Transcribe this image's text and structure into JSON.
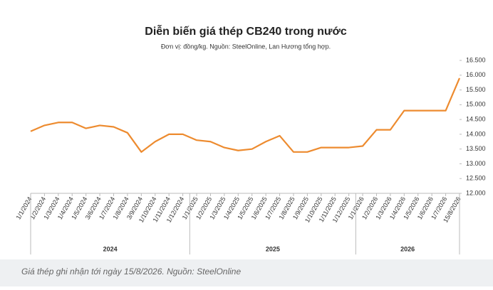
{
  "chart_data": {
    "type": "line",
    "title": "Diễn biến giá thép CB240 trong nước",
    "subtitle": "Đơn vị: đồng/kg. Nguồn: SteelOnline, Lan Hương tổng hợp.",
    "categories": [
      "1/1/2024",
      "1/2/2024",
      "1/3/2024",
      "1/4/2024",
      "1/5/2024",
      "3/6/2024",
      "1/7/2024",
      "1/8/2024",
      "3/9/2024",
      "1/10/2024",
      "1/11/2024",
      "1/12/2024",
      "1/1/2025",
      "1/2/2025",
      "1/3/2025",
      "1/4/2025",
      "1/5/2025",
      "1/6/2025",
      "1/7/2025",
      "1/8/2025",
      "1/9/2025",
      "1/10/2025",
      "1/11/2025",
      "1/12/2025",
      "1/1/2026",
      "1/2/2026",
      "1/3/2026",
      "1/4/2026",
      "1/5/2026",
      "1/6/2026",
      "1/7/2026",
      "15/8/2026"
    ],
    "values": [
      14.1,
      14.3,
      14.4,
      14.4,
      14.2,
      14.3,
      14.25,
      14.05,
      13.4,
      13.75,
      14.0,
      14.0,
      13.8,
      13.75,
      13.55,
      13.45,
      13.5,
      13.75,
      13.95,
      13.4,
      13.4,
      13.55,
      13.55,
      13.55,
      13.6,
      14.15,
      14.15,
      14.8,
      14.8,
      14.8,
      14.8,
      15.9
    ],
    "color": "#ed8b2f",
    "groups": [
      "2024",
      "2025",
      "2026"
    ],
    "ylim": [
      12,
      16.5
    ],
    "yticks": [
      {
        "value": 12,
        "label": "12.000"
      },
      {
        "value": 12.5,
        "label": "12.500"
      },
      {
        "value": 13,
        "label": "13.000"
      },
      {
        "value": 13.5,
        "label": "13.500"
      },
      {
        "value": 14,
        "label": "14.000"
      },
      {
        "value": 14.5,
        "label": "14.500"
      },
      {
        "value": 15,
        "label": "15.000"
      },
      {
        "value": 15.5,
        "label": "15.500"
      },
      {
        "value": 16,
        "label": "16.000"
      },
      {
        "value": 16.5,
        "label": "16.500"
      }
    ],
    "grid": false,
    "caption": "Giá thép ghi nhận tới ngày 15/8/2026. Nguồn: SteelOnline"
  }
}
